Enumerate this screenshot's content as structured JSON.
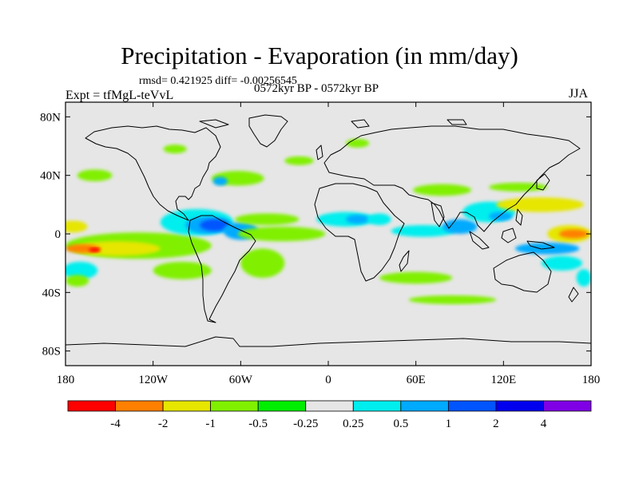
{
  "title": "Precipitation - Evaporation (in mm/day)",
  "stats": "rmsd= 0.421925 diff= -0.00256545",
  "experiment": "Expt = tfMgL-teVvL",
  "period": "0572kyr BP - 0572kyr BP",
  "season": "JJA",
  "map": {
    "projection": "cylindrical-equidistant",
    "lon_range": [
      -180,
      180
    ],
    "lat_range": [
      -90,
      90
    ],
    "ocean_background": "#e6e6e6",
    "lon_ticks": [
      {
        "value": -180,
        "label": "180"
      },
      {
        "value": -120,
        "label": "120W"
      },
      {
        "value": -60,
        "label": "60W"
      },
      {
        "value": 0,
        "label": "0"
      },
      {
        "value": 60,
        "label": "60E"
      },
      {
        "value": 120,
        "label": "120E"
      },
      {
        "value": 180,
        "label": "180"
      }
    ],
    "lat_ticks": [
      {
        "value": 80,
        "label": "80N"
      },
      {
        "value": 40,
        "label": "40N"
      },
      {
        "value": 0,
        "label": "0"
      },
      {
        "value": -40,
        "label": "40S"
      },
      {
        "value": -80,
        "label": "80S"
      }
    ],
    "field_patches": [
      {
        "lon": -175,
        "lat": 5,
        "rlon": 10,
        "rlat": 4,
        "level": "-1"
      },
      {
        "lon": -130,
        "lat": -8,
        "rlon": 50,
        "rlat": 9,
        "level": "-0.5"
      },
      {
        "lon": -145,
        "lat": -10,
        "rlon": 30,
        "rlat": 5,
        "level": "-1"
      },
      {
        "lon": -168,
        "lat": -10,
        "rlon": 12,
        "rlat": 3,
        "level": "-2"
      },
      {
        "lon": -160,
        "lat": -11,
        "rlon": 4,
        "rlat": 1.5,
        "level": "-4"
      },
      {
        "lon": -100,
        "lat": -25,
        "rlon": 20,
        "rlat": 6,
        "level": "-0.5"
      },
      {
        "lon": -170,
        "lat": -25,
        "rlon": 12,
        "rlat": 6,
        "level": "0.5"
      },
      {
        "lon": -172,
        "lat": -32,
        "rlon": 8,
        "rlat": 4,
        "level": "-0.5"
      },
      {
        "lon": -90,
        "lat": 8,
        "rlon": 25,
        "rlat": 9,
        "level": "0.5"
      },
      {
        "lon": -82,
        "lat": 6,
        "rlon": 16,
        "rlat": 6,
        "level": "1"
      },
      {
        "lon": -78,
        "lat": 6,
        "rlon": 10,
        "rlat": 4,
        "level": "2"
      },
      {
        "lon": -60,
        "lat": 2,
        "rlon": 12,
        "rlat": 6,
        "level": "1"
      },
      {
        "lon": -42,
        "lat": 10,
        "rlon": 22,
        "rlat": 4,
        "level": "-0.5"
      },
      {
        "lon": -32,
        "lat": 0,
        "rlon": 30,
        "rlat": 5,
        "level": "-0.5"
      },
      {
        "lon": -45,
        "lat": -20,
        "rlon": 15,
        "rlat": 10,
        "level": "-0.5"
      },
      {
        "lon": -62,
        "lat": 38,
        "rlon": 18,
        "rlat": 5,
        "level": "-0.5"
      },
      {
        "lon": -74,
        "lat": 36,
        "rlon": 5,
        "rlat": 3,
        "level": "1"
      },
      {
        "lon": -160,
        "lat": 40,
        "rlon": 12,
        "rlat": 4,
        "level": "-0.5"
      },
      {
        "lon": -105,
        "lat": 58,
        "rlon": 8,
        "rlat": 3,
        "level": "-0.5"
      },
      {
        "lon": 12,
        "lat": 10,
        "rlon": 20,
        "rlat": 5,
        "level": "0.5"
      },
      {
        "lon": 20,
        "lat": 10,
        "rlon": 8,
        "rlat": 3,
        "level": "1"
      },
      {
        "lon": 35,
        "lat": 10,
        "rlon": 8,
        "rlat": 4,
        "level": "0.5"
      },
      {
        "lon": 65,
        "lat": 2,
        "rlon": 22,
        "rlat": 4,
        "level": "0.5"
      },
      {
        "lon": 90,
        "lat": 5,
        "rlon": 12,
        "rlat": 5,
        "level": "1"
      },
      {
        "lon": 78,
        "lat": 30,
        "rlon": 20,
        "rlat": 4,
        "level": "-0.5"
      },
      {
        "lon": 110,
        "lat": 15,
        "rlon": 18,
        "rlat": 7,
        "level": "0.5"
      },
      {
        "lon": 118,
        "lat": 12,
        "rlon": 8,
        "rlat": 3,
        "level": "1"
      },
      {
        "lon": 145,
        "lat": 20,
        "rlon": 30,
        "rlat": 5,
        "level": "-1"
      },
      {
        "lon": 130,
        "lat": 32,
        "rlon": 20,
        "rlat": 3,
        "level": "-0.5"
      },
      {
        "lon": 165,
        "lat": 0,
        "rlon": 15,
        "rlat": 6,
        "level": "-1"
      },
      {
        "lon": 168,
        "lat": 0,
        "rlon": 10,
        "rlat": 3,
        "level": "-2"
      },
      {
        "lon": 150,
        "lat": -10,
        "rlon": 22,
        "rlat": 4,
        "level": "1"
      },
      {
        "lon": 160,
        "lat": -20,
        "rlon": 14,
        "rlat": 5,
        "level": "0.5"
      },
      {
        "lon": 60,
        "lat": -30,
        "rlon": 25,
        "rlat": 4,
        "level": "-0.5"
      },
      {
        "lon": 85,
        "lat": -45,
        "rlon": 30,
        "rlat": 3,
        "level": "-0.5"
      },
      {
        "lon": 175,
        "lat": -30,
        "rlon": 5,
        "rlat": 6,
        "level": "0.5"
      },
      {
        "lon": -20,
        "lat": 50,
        "rlon": 10,
        "rlat": 3,
        "level": "-0.5"
      },
      {
        "lon": 20,
        "lat": 62,
        "rlon": 8,
        "rlat": 3,
        "level": "-0.5"
      }
    ]
  },
  "colorbar": {
    "levels": [
      {
        "key": "-4",
        "color": "#ff0000"
      },
      {
        "key": "-2",
        "color": "#ff8000"
      },
      {
        "key": "-1",
        "color": "#e6e600"
      },
      {
        "key": "-0.5",
        "color": "#80f000"
      },
      {
        "key": "-0.25",
        "color": "#00ee00"
      },
      {
        "key": "0.25",
        "color": "#e6e6e6"
      },
      {
        "key": "0.5",
        "color": "#00eeee"
      },
      {
        "key": "1",
        "color": "#00aaff"
      },
      {
        "key": "2",
        "color": "#0055ff"
      },
      {
        "key": "4a",
        "color": "#0000ee"
      },
      {
        "key": "4b",
        "color": "#8000e6"
      }
    ],
    "labels": [
      "-4",
      "-2",
      "-1",
      "-0.5",
      "-0.25",
      "0.25",
      "0.5",
      "1",
      "2",
      "4"
    ]
  },
  "colors": {
    "-4": "#ff0000",
    "-2": "#ff8000",
    "-1": "#e6e600",
    "-0.5": "#80f000",
    "-0.25": "#00ee00",
    "0.5": "#00eeee",
    "1": "#00aaff",
    "2": "#0055ff",
    "4": "#0000ee"
  }
}
